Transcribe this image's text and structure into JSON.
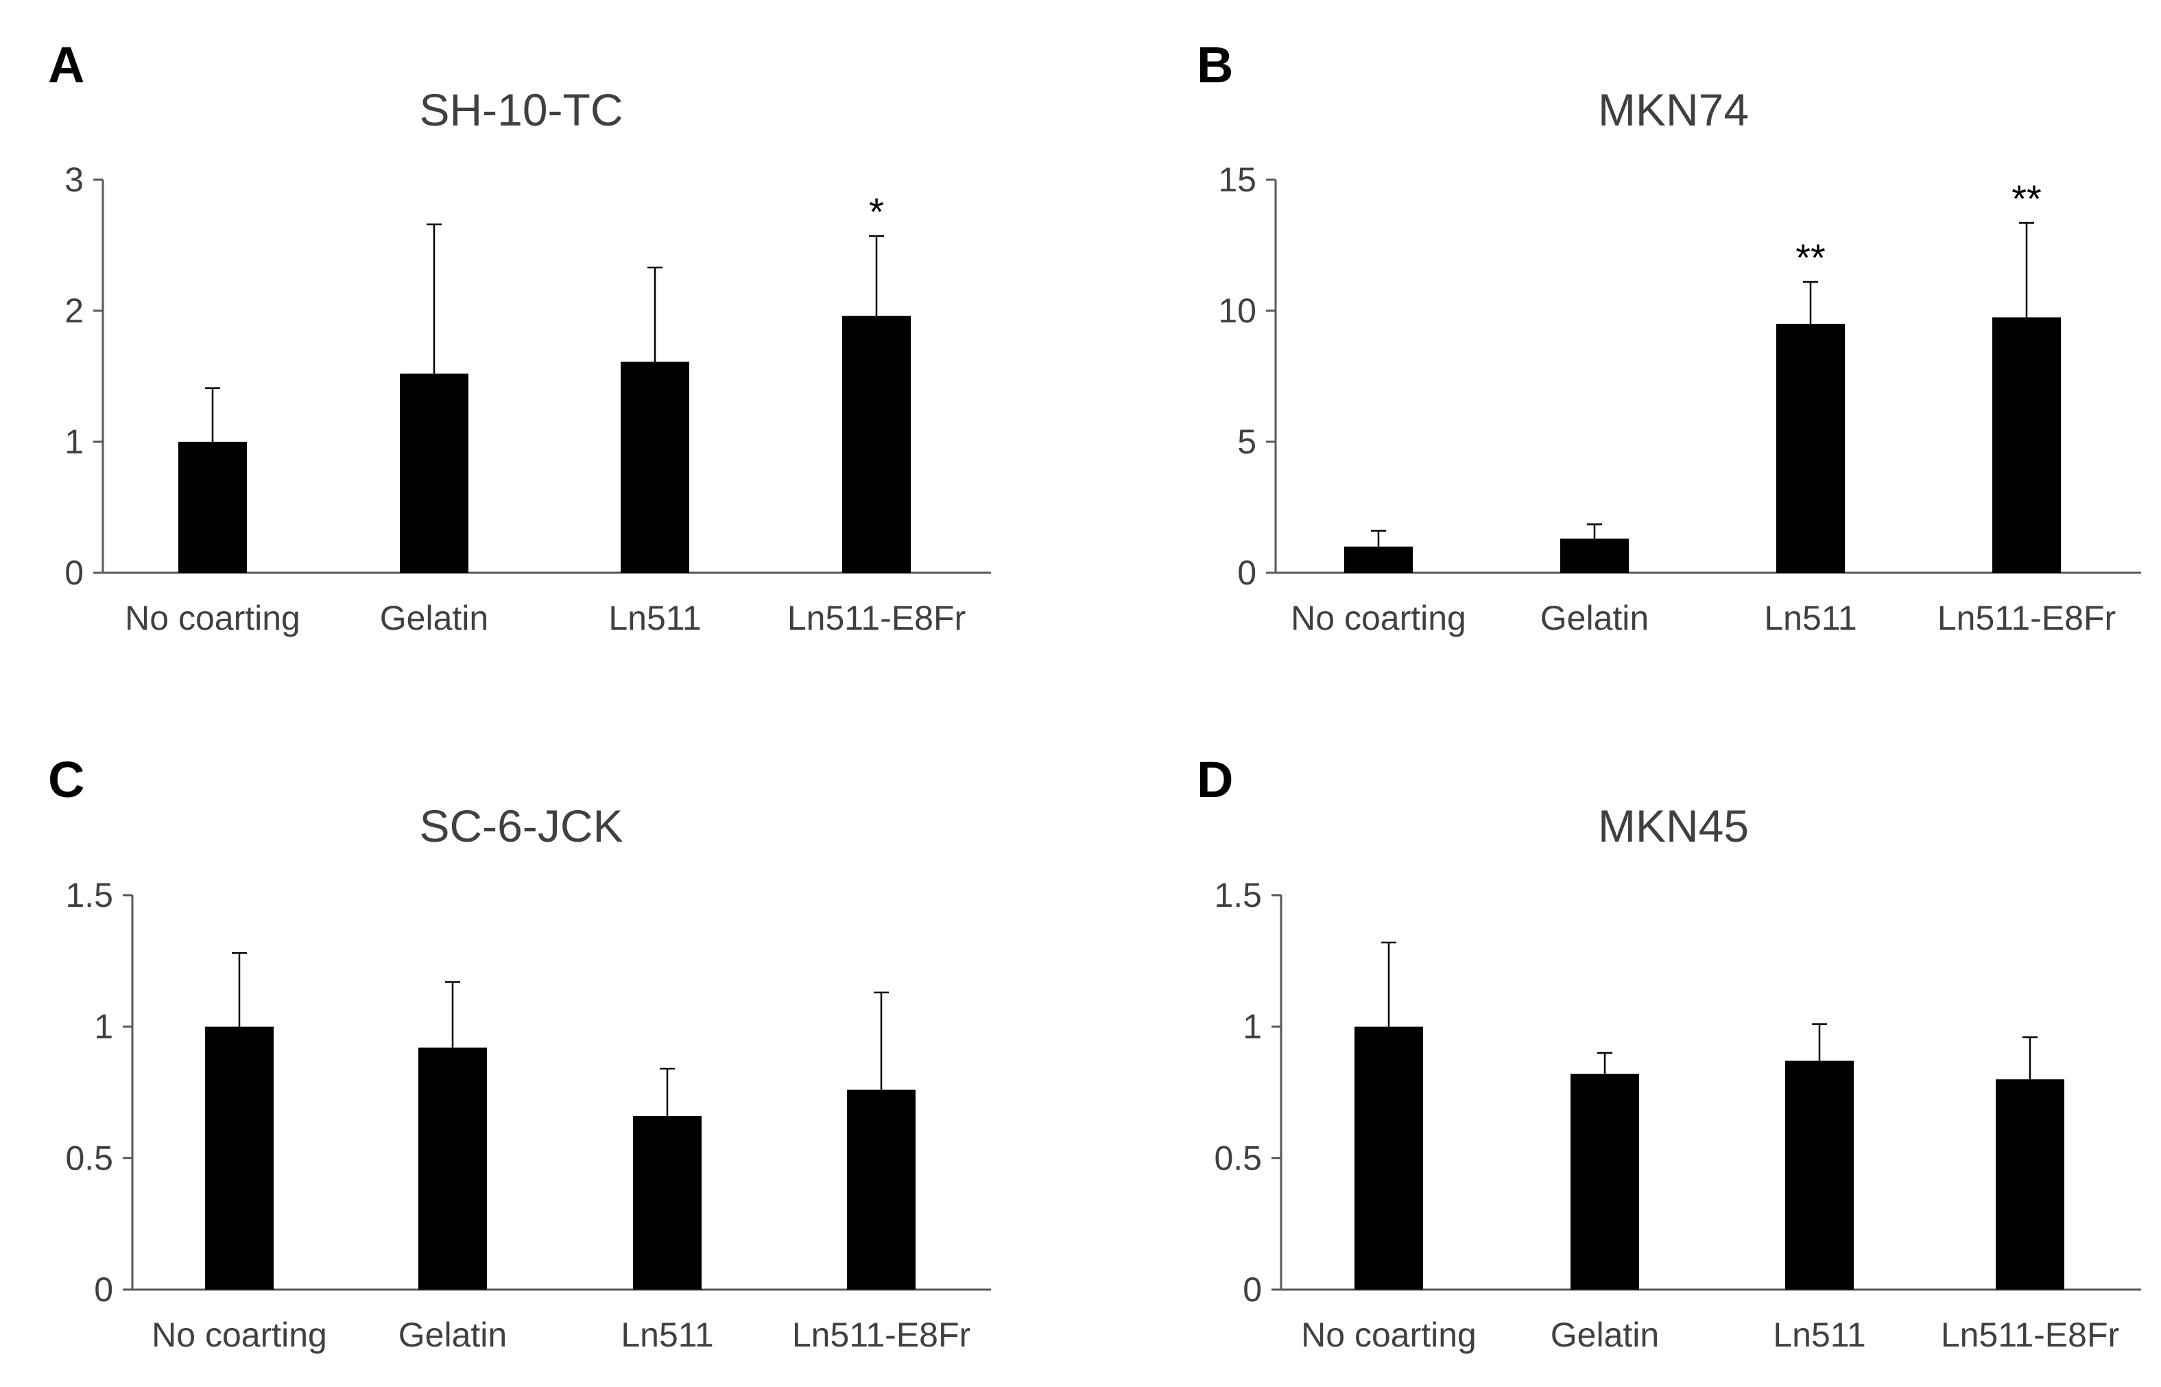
{
  "chart_data": [
    {
      "panel": "A",
      "type": "bar",
      "title": "SH-10-TC",
      "categories": [
        "No coarting",
        "Gelatin",
        "Ln511",
        "Ln511-E8Fr"
      ],
      "values": [
        1.0,
        1.52,
        1.61,
        1.96
      ],
      "errors": [
        0.41,
        1.14,
        0.72,
        0.61
      ],
      "significance": [
        "",
        "",
        "",
        "*"
      ],
      "ylim": [
        0,
        3
      ],
      "yticks": [
        0,
        1,
        2,
        3
      ],
      "ytick_labels": [
        "0",
        "1",
        "2",
        "3"
      ],
      "xlabel": "",
      "ylabel": "",
      "bar_color": "#000000"
    },
    {
      "panel": "B",
      "type": "bar",
      "title": "MKN74",
      "categories": [
        "No coarting",
        "Gelatin",
        "Ln511",
        "Ln511-E8Fr"
      ],
      "values": [
        1.0,
        1.3,
        9.5,
        9.75
      ],
      "errors": [
        0.6,
        0.55,
        1.6,
        3.6
      ],
      "significance": [
        "",
        "",
        "**",
        "**"
      ],
      "ylim": [
        0,
        15
      ],
      "yticks": [
        0,
        5,
        10,
        15
      ],
      "ytick_labels": [
        "0",
        "5",
        "10",
        "15"
      ],
      "xlabel": "",
      "ylabel": "",
      "bar_color": "#000000"
    },
    {
      "panel": "C",
      "type": "bar",
      "title": "SC-6-JCK",
      "categories": [
        "No coarting",
        "Gelatin",
        "Ln511",
        "Ln511-E8Fr"
      ],
      "values": [
        1.0,
        0.92,
        0.66,
        0.76
      ],
      "errors": [
        0.28,
        0.25,
        0.18,
        0.37
      ],
      "significance": [
        "",
        "",
        "",
        ""
      ],
      "ylim": [
        0,
        1.5
      ],
      "yticks": [
        0,
        0.5,
        1,
        1.5
      ],
      "ytick_labels": [
        "0",
        "0.5",
        "1",
        "1.5"
      ],
      "xlabel": "",
      "ylabel": "",
      "bar_color": "#000000"
    },
    {
      "panel": "D",
      "type": "bar",
      "title": "MKN45",
      "categories": [
        "No coarting",
        "Gelatin",
        "Ln511",
        "Ln511-E8Fr"
      ],
      "values": [
        1.0,
        0.82,
        0.87,
        0.8
      ],
      "errors": [
        0.32,
        0.08,
        0.14,
        0.16
      ],
      "significance": [
        "",
        "",
        "",
        ""
      ],
      "ylim": [
        0,
        1.5
      ],
      "yticks": [
        0,
        0.5,
        1,
        1.5
      ],
      "ytick_labels": [
        "0",
        "0.5",
        "1",
        "1.5"
      ],
      "xlabel": "",
      "ylabel": "",
      "bar_color": "#000000"
    }
  ]
}
